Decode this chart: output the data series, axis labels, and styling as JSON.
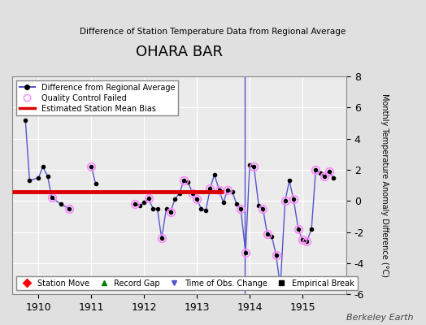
{
  "title": "OHARA BAR",
  "subtitle": "Difference of Station Temperature Data from Regional Average",
  "ylabel": "Monthly Temperature Anomaly Difference (°C)",
  "credit": "Berkeley Earth",
  "xlim": [
    1909.5,
    1915.83
  ],
  "ylim": [
    -6,
    8
  ],
  "yticks": [
    -6,
    -4,
    -2,
    0,
    2,
    4,
    6,
    8
  ],
  "xticks": [
    1910,
    1911,
    1912,
    1913,
    1914,
    1915
  ],
  "bias_value": 0.6,
  "bias_x_start": 1909.5,
  "bias_x_end": 1913.5,
  "background_color": "#e0e0e0",
  "plot_bg_color": "#ebebeb",
  "line_color": "#5555cc",
  "dot_color": "#000000",
  "qc_color": "#ff88ff",
  "bias_color": "#dd0000",
  "time_series": [
    [
      1909.75,
      5.2
    ],
    [
      1909.83,
      1.3
    ],
    [
      1910.0,
      1.5
    ],
    [
      1910.08,
      2.2
    ],
    [
      1910.17,
      1.6
    ],
    [
      1910.25,
      0.2
    ],
    [
      1910.42,
      -0.2
    ],
    [
      1910.58,
      -0.5
    ],
    [
      1910.67,
      null
    ],
    [
      1911.0,
      2.2
    ],
    [
      1911.08,
      1.1
    ],
    [
      1911.17,
      null
    ],
    [
      1911.67,
      null
    ],
    [
      1911.83,
      -0.2
    ],
    [
      1911.92,
      -0.3
    ],
    [
      1912.0,
      -0.1
    ],
    [
      1912.08,
      0.15
    ],
    [
      1912.17,
      -0.5
    ],
    [
      1912.25,
      -0.5
    ],
    [
      1912.33,
      -2.4
    ],
    [
      1912.42,
      -0.5
    ],
    [
      1912.5,
      -0.7
    ],
    [
      1912.58,
      0.1
    ],
    [
      1912.67,
      0.5
    ],
    [
      1912.75,
      1.3
    ],
    [
      1912.83,
      1.2
    ],
    [
      1912.92,
      0.5
    ],
    [
      1913.0,
      0.1
    ],
    [
      1913.08,
      -0.5
    ],
    [
      1913.17,
      -0.6
    ],
    [
      1913.25,
      0.8
    ],
    [
      1913.33,
      1.7
    ],
    [
      1913.42,
      0.7
    ],
    [
      1913.5,
      -0.1
    ],
    [
      1913.58,
      0.7
    ],
    [
      1913.67,
      0.6
    ],
    [
      1913.75,
      -0.2
    ],
    [
      1913.83,
      -0.5
    ],
    [
      1913.92,
      -3.3
    ],
    [
      1914.0,
      2.3
    ],
    [
      1914.08,
      2.2
    ],
    [
      1914.17,
      -0.3
    ],
    [
      1914.25,
      -0.5
    ],
    [
      1914.33,
      -2.1
    ],
    [
      1914.42,
      -2.3
    ],
    [
      1914.5,
      -3.5
    ],
    [
      1914.58,
      -5.5
    ],
    [
      1914.67,
      0.0
    ],
    [
      1914.75,
      1.3
    ],
    [
      1914.83,
      0.1
    ],
    [
      1914.92,
      -1.8
    ],
    [
      1915.0,
      -2.5
    ],
    [
      1915.08,
      -2.6
    ],
    [
      1915.17,
      -1.8
    ],
    [
      1915.25,
      2.0
    ],
    [
      1915.33,
      1.8
    ],
    [
      1915.42,
      1.6
    ],
    [
      1915.5,
      1.9
    ],
    [
      1915.58,
      1.5
    ]
  ],
  "qc_failed_indices": [
    5,
    7,
    9,
    13,
    16,
    19,
    21,
    24,
    26,
    27,
    30,
    32,
    34,
    37,
    38,
    40,
    42,
    43,
    45,
    47,
    49,
    50,
    51,
    52,
    54,
    56,
    57
  ],
  "time_obs_change_x": 1913.9
}
